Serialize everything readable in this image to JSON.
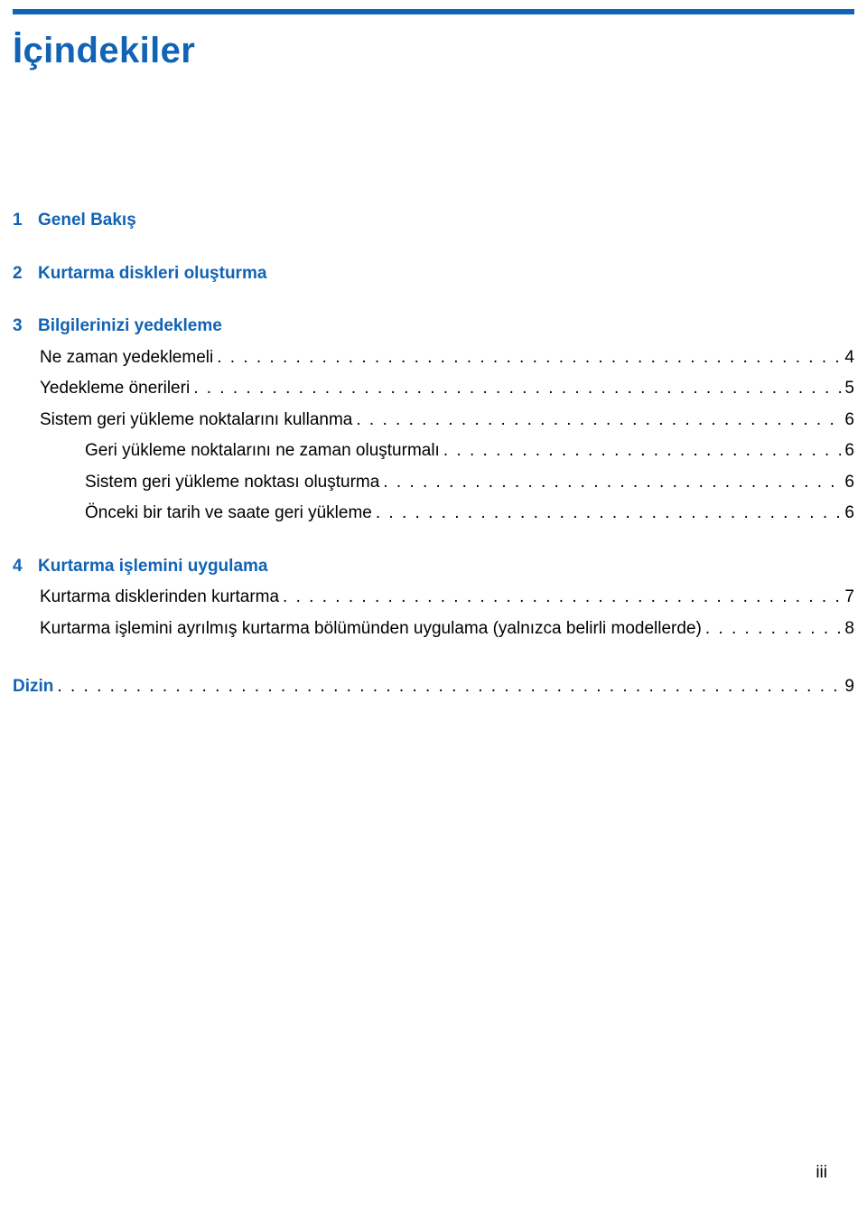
{
  "colors": {
    "accent": "#1163b5",
    "text": "#000000",
    "background": "#ffffff"
  },
  "typography": {
    "title_fontsize": 40,
    "body_fontsize": 19,
    "font_family": "Arial"
  },
  "title": "İçindekiler",
  "toc": {
    "ch1": {
      "num": "1",
      "title": "Genel Bakış"
    },
    "ch2": {
      "num": "2",
      "title": "Kurtarma diskleri oluşturma"
    },
    "ch3": {
      "num": "3",
      "title": "Bilgilerinizi yedekleme",
      "items": {
        "a": {
          "label": "Ne zaman yedeklemeli",
          "page": "4"
        },
        "b": {
          "label": "Yedekleme önerileri",
          "page": "5"
        },
        "c": {
          "label": "Sistem geri yükleme noktalarını kullanma",
          "page": "6",
          "sub": {
            "a": {
              "label": "Geri yükleme noktalarını ne zaman oluşturmalı",
              "page": "6"
            },
            "b": {
              "label": "Sistem geri yükleme noktası oluşturma",
              "page": "6"
            },
            "c": {
              "label": "Önceki bir tarih ve saate geri yükleme",
              "page": "6"
            }
          }
        }
      }
    },
    "ch4": {
      "num": "4",
      "title": "Kurtarma işlemini uygulama",
      "items": {
        "a": {
          "label": "Kurtarma disklerinden kurtarma",
          "page": "7"
        },
        "b": {
          "label": "Kurtarma işlemini ayrılmış kurtarma bölümünden uygulama (yalnızca belirli modellerde)",
          "page": "8"
        }
      }
    },
    "dizin": {
      "label": "Dizin",
      "page": "9"
    }
  },
  "footer_page": "iii"
}
